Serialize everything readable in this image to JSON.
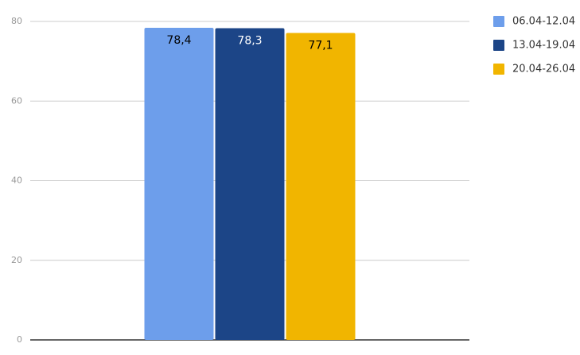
{
  "chart_data": {
    "type": "bar",
    "categories": [
      null
    ],
    "series": [
      {
        "name": "06.04-12.04",
        "color": "#6d9eeb",
        "values": [
          78.4
        ],
        "value_labels": [
          "78,4"
        ]
      },
      {
        "name": "13.04-19.04",
        "color": "#1c4587",
        "values": [
          78.3
        ],
        "value_labels": [
          "78,3"
        ]
      },
      {
        "name": "20.04-26.04",
        "color": "#f1b500",
        "values": [
          77.1
        ],
        "value_labels": [
          "77,1"
        ]
      }
    ],
    "ylim": [
      0,
      80
    ],
    "yticks": [
      0,
      20,
      40,
      60,
      80
    ],
    "grid": true,
    "legend": "right"
  }
}
